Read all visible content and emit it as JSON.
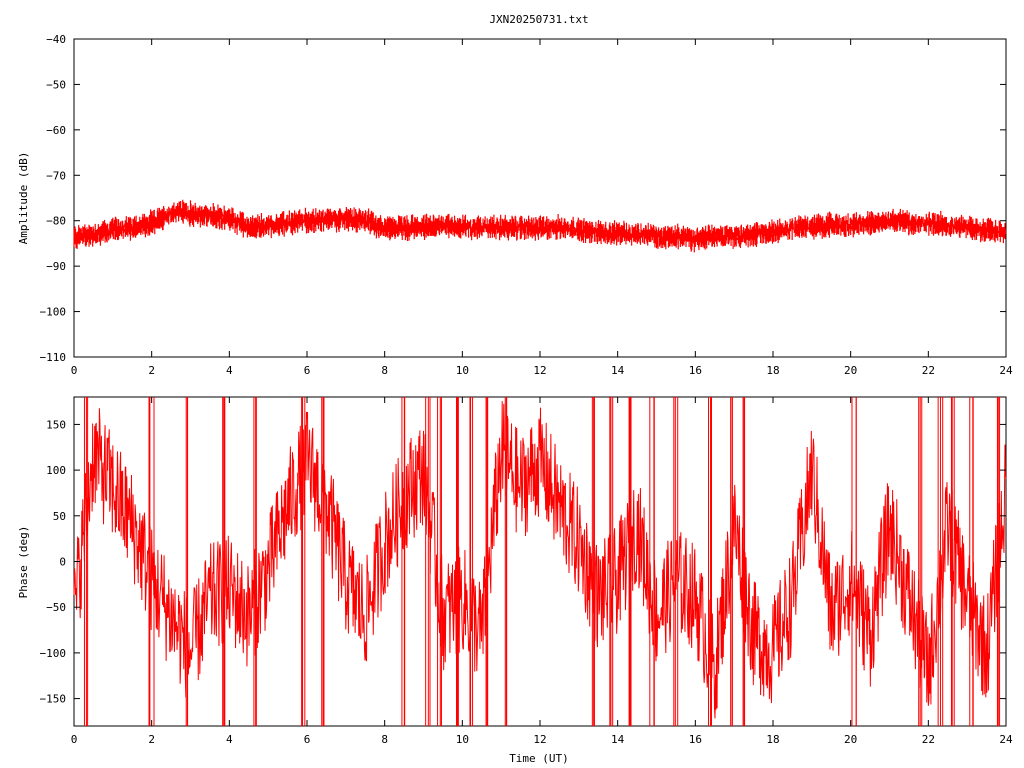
{
  "title": "JXN20250731.txt",
  "colors": {
    "trace": "#ff0000",
    "axis": "#000000",
    "grid": "#a0a0a0",
    "background": "#ffffff"
  },
  "chart_data": [
    {
      "type": "line",
      "title": "JXN20250731.txt",
      "xlabel": "",
      "ylabel": "Amplitude (dB)",
      "xlim": [
        0,
        24
      ],
      "ylim": [
        -110,
        -40
      ],
      "x_ticks": [
        "0",
        "2",
        "4",
        "6",
        "8",
        "10",
        "12",
        "14",
        "16",
        "18",
        "20",
        "22",
        "24"
      ],
      "y_ticks": [
        "-40",
        "-50",
        "-60",
        "-70",
        "-80",
        "-90",
        "-100",
        "-110"
      ],
      "grid": false,
      "series": [
        {
          "x": [
            0,
            0.5,
            1,
            1.5,
            2,
            2.5,
            2.75,
            3,
            3.5,
            4,
            4.5,
            5,
            5.5,
            6,
            6.5,
            7,
            7.5,
            8,
            8.5,
            9,
            9.5,
            10,
            10.5,
            11,
            11.5,
            12,
            12.5,
            13,
            13.5,
            14,
            14.5,
            15,
            15.5,
            16,
            16.5,
            17,
            17.5,
            18,
            18.5,
            19,
            19.5,
            20,
            20.5,
            21,
            21.5,
            22,
            22.5,
            23,
            23.5,
            24
          ],
          "values": [
            -83.5,
            -83,
            -82,
            -81.5,
            -80.5,
            -78.5,
            -78,
            -78.5,
            -79,
            -79.5,
            -81.5,
            -81,
            -80.5,
            -80,
            -80,
            -79.5,
            -80,
            -81.5,
            -81.5,
            -81.5,
            -81,
            -81.5,
            -81.5,
            -81.5,
            -81.5,
            -81.5,
            -81.5,
            -82,
            -82.5,
            -83,
            -83,
            -83.5,
            -83.5,
            -84,
            -83.5,
            -83.5,
            -83,
            -82.5,
            -81.5,
            -81.5,
            -81,
            -81,
            -80.5,
            -80,
            -80.5,
            -80.5,
            -81,
            -81.5,
            -82,
            -82.5
          ],
          "spread": 4
        }
      ]
    },
    {
      "type": "line",
      "title": "",
      "xlabel": "Time (UT)",
      "ylabel": "Phase (deg)",
      "xlim": [
        0,
        24
      ],
      "ylim": [
        -180,
        180
      ],
      "x_ticks": [
        "0",
        "2",
        "4",
        "6",
        "8",
        "10",
        "12",
        "14",
        "16",
        "18",
        "20",
        "22",
        "24"
      ],
      "y_ticks": [
        "150",
        "100",
        "50",
        "0",
        "-50",
        "-100",
        "-150"
      ],
      "grid": false,
      "series": [
        {
          "x": [
            0,
            0.5,
            1,
            1.5,
            2,
            2.5,
            3,
            3.5,
            4,
            4.5,
            5,
            5.5,
            6,
            6.5,
            7,
            7.5,
            8,
            8.5,
            9,
            9.5,
            10,
            10.5,
            11,
            11.5,
            12,
            12.5,
            13,
            13.5,
            14,
            14.5,
            15,
            15.5,
            16,
            16.5,
            17,
            17.5,
            18,
            18.5,
            19,
            19.5,
            20,
            20.5,
            21,
            21.5,
            22,
            22.5,
            23,
            23.5,
            24
          ],
          "values": [
            -60,
            120,
            80,
            40,
            -20,
            -60,
            -100,
            -40,
            -30,
            -60,
            -10,
            60,
            110,
            60,
            -20,
            -60,
            20,
            70,
            100,
            -60,
            -40,
            -80,
            120,
            80,
            110,
            60,
            20,
            -40,
            -20,
            40,
            -60,
            -20,
            -40,
            -120,
            40,
            -80,
            -100,
            -40,
            100,
            -60,
            -20,
            -80,
            40,
            -40,
            -120,
            40,
            -40,
            -100,
            80
          ],
          "wrap_spikes": [
            0.3,
            2.0,
            2.9,
            3.9,
            4.7,
            5.9,
            6.4,
            8.5,
            9.1,
            9.4,
            9.9,
            10.2,
            10.6,
            11.1,
            13.4,
            13.8,
            14.3,
            14.9,
            15.5,
            16.4,
            16.9,
            17.3,
            20.1,
            21.8,
            22.3,
            22.6,
            23.1,
            23.8
          ],
          "spread": 60
        }
      ]
    }
  ]
}
